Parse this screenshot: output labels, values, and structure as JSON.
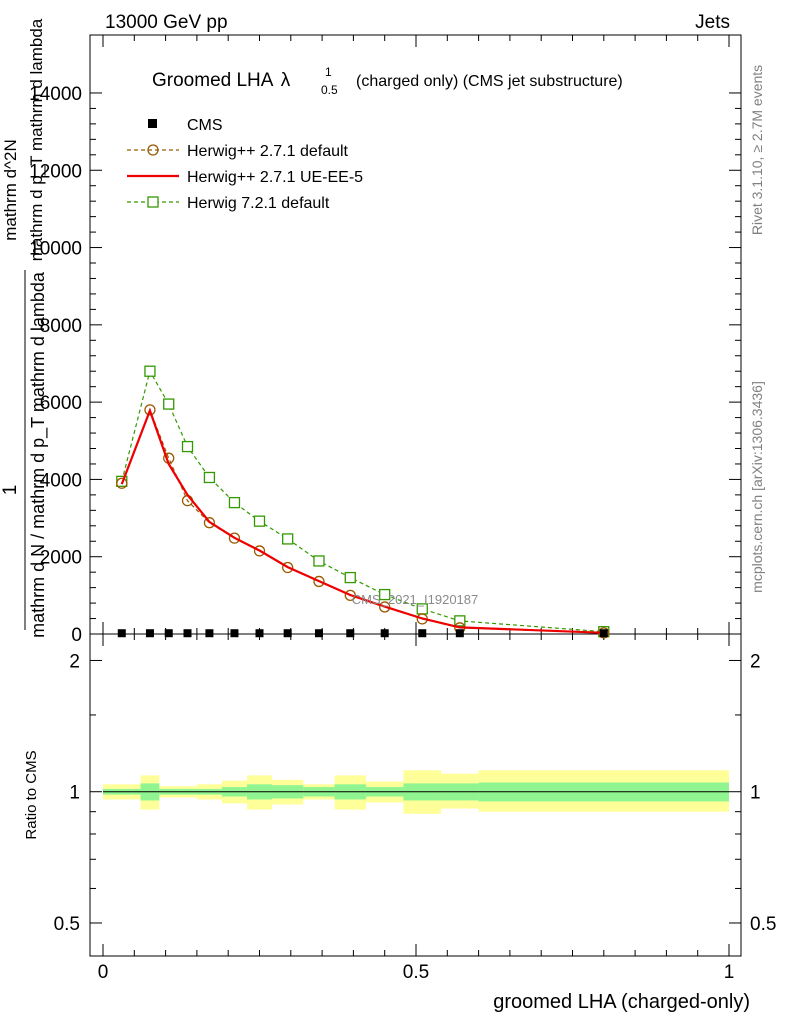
{
  "header": {
    "left": "13000 GeV pp",
    "right": "Jets"
  },
  "side_text": {
    "rivet": "Rivet 3.1.10, ≥ 2.7M events",
    "mcplots": "mcplots.cern.ch [arXiv:1306.3436]"
  },
  "watermark": "CMS_2021_I1920187",
  "chart_data": [
    {
      "type": "line",
      "title": "Groomed LHA λ^1_0.5 (charged only) (CMS jet substructure)",
      "title_parts": {
        "main": "Groomed LHA",
        "symbol": "λ",
        "sup": "1",
        "sub": "0.5",
        "rest": "(charged only) (CMS jet substructure)"
      },
      "ylabel_lines": [
        "1",
        "mathrm d N / mathrm d p_T mathrm d lambda",
        "mathrm d^2N",
        "mathrm d p_T mathrm d lambda"
      ],
      "xlim": [
        0,
        1
      ],
      "ylim": [
        0,
        15500
      ],
      "yticks": [
        0,
        2000,
        4000,
        6000,
        8000,
        10000,
        12000,
        14000
      ],
      "ytick_labels": [
        "0",
        "2000",
        "4000",
        "6000",
        "8000",
        "10000",
        "12000",
        "14000"
      ],
      "legend_position": "top-left",
      "x": [
        0.03,
        0.075,
        0.105,
        0.135,
        0.17,
        0.21,
        0.25,
        0.295,
        0.345,
        0.395,
        0.45,
        0.51,
        0.57,
        0.8
      ],
      "series": [
        {
          "name": "CMS",
          "marker": "filled-square",
          "color": "#000000",
          "values": [
            20,
            20,
            20,
            20,
            20,
            20,
            20,
            20,
            20,
            20,
            20,
            20,
            20,
            20
          ]
        },
        {
          "name": "Herwig++ 2.7.1 default",
          "marker": "open-circle",
          "dash": true,
          "color": "#9a5a00",
          "values": [
            3900,
            5800,
            4550,
            3450,
            2880,
            2480,
            2150,
            1720,
            1360,
            1000,
            700,
            390,
            160,
            30
          ]
        },
        {
          "name": "Herwig++ 2.7.1 UE-EE-5",
          "marker": "none",
          "dash": false,
          "color": "#ee0000",
          "values": [
            3880,
            5780,
            4400,
            3600,
            2900,
            2490,
            2160,
            1730,
            1370,
            1010,
            710,
            400,
            170,
            30
          ]
        },
        {
          "name": "Herwig 7.2.1 default",
          "marker": "open-square",
          "dash": true,
          "color": "#339900",
          "values": [
            3950,
            6800,
            5950,
            4850,
            4050,
            3400,
            2920,
            2460,
            1890,
            1460,
            1020,
            650,
            340,
            60
          ]
        }
      ]
    },
    {
      "type": "area",
      "ylabel": "Ratio to CMS",
      "xlabel": "groomed LHA (charged-only)",
      "xlim": [
        0,
        1
      ],
      "xticks": [
        0,
        0.5,
        1
      ],
      "xtick_labels": [
        "0",
        "0.5",
        "1"
      ],
      "ylim": [
        0.42,
        2.3
      ],
      "log_scale": true,
      "yticks": [
        0.5,
        1,
        2
      ],
      "ytick_labels": [
        "0.5",
        "1",
        "2"
      ],
      "bin_edges": [
        0,
        0.045,
        0.06,
        0.09,
        0.12,
        0.15,
        0.19,
        0.23,
        0.27,
        0.32,
        0.37,
        0.42,
        0.48,
        0.54,
        0.6,
        1.0
      ],
      "reference": 1,
      "inner_band": {
        "color": "#90f590",
        "lo": [
          0.985,
          0.985,
          0.955,
          0.985,
          0.985,
          0.985,
          0.975,
          0.96,
          0.965,
          0.975,
          0.96,
          0.975,
          0.955,
          0.955,
          0.95
        ],
        "hi": [
          1.015,
          1.015,
          1.045,
          1.015,
          1.015,
          1.015,
          1.025,
          1.04,
          1.035,
          1.025,
          1.04,
          1.025,
          1.045,
          1.045,
          1.05
        ]
      },
      "outer_band": {
        "color": "#ffff99",
        "lo": [
          0.96,
          0.96,
          0.91,
          0.97,
          0.97,
          0.96,
          0.94,
          0.91,
          0.935,
          0.96,
          0.91,
          0.945,
          0.89,
          0.915,
          0.9
        ],
        "hi": [
          1.04,
          1.04,
          1.09,
          1.03,
          1.03,
          1.04,
          1.06,
          1.09,
          1.065,
          1.04,
          1.09,
          1.055,
          1.12,
          1.1,
          1.12
        ]
      }
    }
  ]
}
